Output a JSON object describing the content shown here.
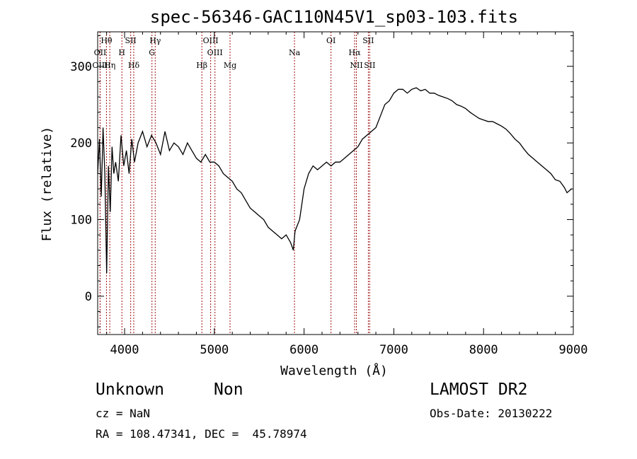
{
  "chart_data": {
    "type": "line",
    "title": "spec-56346-GAC110N45V1_sp03-103.fits",
    "xlabel": "Wavelength (Å)",
    "ylabel": "Flux (relative)",
    "xlim": [
      3700,
      9000
    ],
    "ylim": [
      -50,
      345
    ],
    "xticks": [
      4000,
      5000,
      6000,
      7000,
      8000,
      9000
    ],
    "yticks": [
      0,
      100,
      200,
      300
    ],
    "grid": false,
    "series": [
      {
        "x": [
          3700,
          3720,
          3740,
          3760,
          3780,
          3800,
          3820,
          3840,
          3860,
          3880,
          3900,
          3930,
          3960,
          3990,
          4020,
          4050,
          4080,
          4110,
          4150,
          4200,
          4250,
          4300,
          4350,
          4400,
          4450,
          4500,
          4550,
          4600,
          4650,
          4700,
          4750,
          4800,
          4850,
          4900,
          4950,
          5000,
          5050,
          5100,
          5150,
          5200,
          5250,
          5300,
          5350,
          5400,
          5450,
          5500,
          5550,
          5600,
          5650,
          5700,
          5750,
          5800,
          5850,
          5880,
          5900,
          5950,
          6000,
          6050,
          6100,
          6150,
          6200,
          6250,
          6300,
          6350,
          6400,
          6450,
          6500,
          6550,
          6600,
          6650,
          6700,
          6750,
          6800,
          6850,
          6900,
          6950,
          7000,
          7050,
          7100,
          7150,
          7200,
          7250,
          7300,
          7350,
          7400,
          7450,
          7500,
          7550,
          7600,
          7650,
          7700,
          7750,
          7800,
          7850,
          7900,
          7950,
          8000,
          8050,
          8100,
          8150,
          8200,
          8250,
          8300,
          8350,
          8400,
          8450,
          8500,
          8550,
          8600,
          8650,
          8700,
          8750,
          8800,
          8850,
          8900,
          8930,
          8960,
          8980
        ],
        "y": [
          160,
          205,
          130,
          220,
          160,
          30,
          170,
          110,
          195,
          160,
          175,
          150,
          210,
          170,
          190,
          160,
          205,
          175,
          200,
          215,
          195,
          210,
          200,
          185,
          215,
          190,
          200,
          195,
          185,
          200,
          190,
          180,
          175,
          185,
          175,
          175,
          170,
          160,
          155,
          150,
          140,
          135,
          125,
          115,
          110,
          105,
          100,
          90,
          85,
          80,
          75,
          80,
          70,
          60,
          85,
          100,
          140,
          160,
          170,
          165,
          170,
          175,
          170,
          175,
          175,
          180,
          185,
          190,
          195,
          205,
          210,
          215,
          220,
          235,
          250,
          255,
          265,
          270,
          270,
          265,
          270,
          272,
          268,
          270,
          265,
          265,
          262,
          260,
          258,
          255,
          250,
          248,
          245,
          240,
          236,
          232,
          230,
          228,
          228,
          225,
          222,
          218,
          212,
          205,
          200,
          192,
          185,
          180,
          175,
          170,
          165,
          160,
          152,
          150,
          142,
          135,
          138,
          140
        ]
      }
    ],
    "line_markers": [
      {
        "label": "Hθ",
        "x": 3798,
        "row": 1
      },
      {
        "label": "OII",
        "x": 3727,
        "row": 2
      },
      {
        "label": "OIII",
        "x": 3727,
        "row": 3
      },
      {
        "label": "Hη",
        "x": 3835,
        "row": 3
      },
      {
        "label": "H",
        "x": 3970,
        "row": 2
      },
      {
        "label": "SII",
        "x": 4068,
        "row": 1
      },
      {
        "label": "Hδ",
        "x": 4102,
        "row": 3
      },
      {
        "label": "Hγ",
        "x": 4341,
        "row": 1
      },
      {
        "label": "G",
        "x": 4305,
        "row": 2
      },
      {
        "label": "OIII",
        "x": 4959,
        "row": 1
      },
      {
        "label": "OIII",
        "x": 5007,
        "row": 2
      },
      {
        "label": "Hβ",
        "x": 4861,
        "row": 3
      },
      {
        "label": "Mg",
        "x": 5175,
        "row": 3
      },
      {
        "label": "Na",
        "x": 5893,
        "row": 2
      },
      {
        "label": "OI",
        "x": 6300,
        "row": 1
      },
      {
        "label": "Hα",
        "x": 6563,
        "row": 2
      },
      {
        "label": "NII",
        "x": 6583,
        "row": 3
      },
      {
        "label": "SII",
        "x": 6716,
        "row": 1
      },
      {
        "label": "SII",
        "x": 6731,
        "row": 3
      }
    ],
    "marker_color": "#a01010"
  },
  "info": {
    "class_label": "Unknown",
    "subclass_label": "Non",
    "redshift": "cz = NaN",
    "coords": "RA = 108.47341, DEC =  45.78974",
    "survey": "LAMOST DR2",
    "obs_date": "Obs-Date: 20130222"
  }
}
